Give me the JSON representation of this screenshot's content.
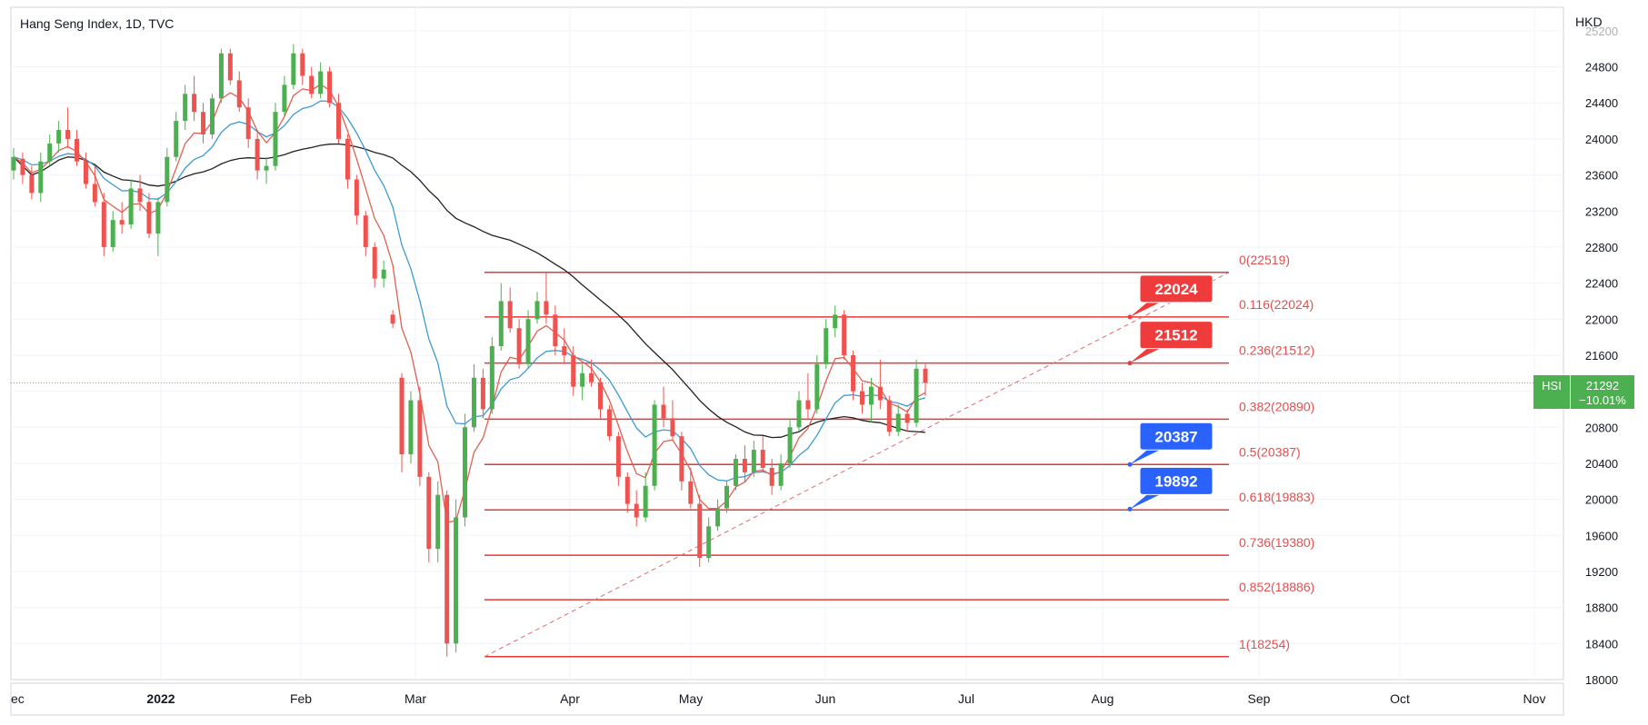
{
  "header": {
    "title": "Hang Seng Index, 1D, TVC",
    "currency": "HKD"
  },
  "price_tag": {
    "symbol": "HSI",
    "price": "21292",
    "change": "−10.01%"
  },
  "colors": {
    "up": "#4caf50",
    "down": "#ef5350",
    "fib": "#e53935",
    "ma_fast": "#e06050",
    "ma_mid": "#3d9ad1",
    "ma_slow": "#222222",
    "label_red": "#ef3b3b",
    "label_blue": "#2962ff"
  },
  "chart_data": {
    "type": "candlestick",
    "ylim": [
      18000,
      25200
    ],
    "y_ticks": [
      "18000",
      "18400",
      "18800",
      "19200",
      "19600",
      "20000",
      "20400",
      "20800",
      "21200",
      "21600",
      "22000",
      "22400",
      "22800",
      "23200",
      "23600",
      "24000",
      "24400",
      "24800",
      "25200"
    ],
    "x_ticks": [
      "ec",
      "2022",
      "Feb",
      "Mar",
      "Apr",
      "May",
      "Jun",
      "Jul",
      "Aug",
      "Sep",
      "Oct",
      "Nov"
    ],
    "fib_levels": [
      {
        "ratio": 0,
        "price": 22519,
        "label": "0(22519)"
      },
      {
        "ratio": 0.116,
        "price": 22024,
        "label": "0.116(22024)"
      },
      {
        "ratio": 0.236,
        "price": 21512,
        "label": "0.236(21512)"
      },
      {
        "ratio": 0.382,
        "price": 20890,
        "label": "0.382(20890)"
      },
      {
        "ratio": 0.5,
        "price": 20387,
        "label": "0.5(20387)"
      },
      {
        "ratio": 0.618,
        "price": 19883,
        "label": "0.618(19883)"
      },
      {
        "ratio": 0.736,
        "price": 19380,
        "label": "0.736(19380)"
      },
      {
        "ratio": 0.852,
        "price": 18886,
        "label": "0.852(18886)"
      },
      {
        "ratio": 1,
        "price": 18254,
        "label": "1(18254)"
      }
    ],
    "callouts": [
      {
        "text": "22024",
        "price": 22024,
        "color": "red"
      },
      {
        "text": "21512",
        "price": 21512,
        "color": "red"
      },
      {
        "text": "20387",
        "price": 20387,
        "color": "blue"
      },
      {
        "text": "19892",
        "price": 19892,
        "color": "blue"
      }
    ],
    "last_price": 21292,
    "candles": [
      {
        "o": 23650,
        "h": 23900,
        "l": 23550,
        "c": 23800
      },
      {
        "o": 23780,
        "h": 23850,
        "l": 23500,
        "c": 23600
      },
      {
        "o": 23600,
        "h": 23700,
        "l": 23330,
        "c": 23400
      },
      {
        "o": 23400,
        "h": 23850,
        "l": 23300,
        "c": 23750
      },
      {
        "o": 23750,
        "h": 24050,
        "l": 23700,
        "c": 23950
      },
      {
        "o": 23950,
        "h": 24200,
        "l": 23850,
        "c": 24100
      },
      {
        "o": 24100,
        "h": 24350,
        "l": 23900,
        "c": 24000
      },
      {
        "o": 24000,
        "h": 24100,
        "l": 23700,
        "c": 23750
      },
      {
        "o": 23750,
        "h": 23850,
        "l": 23450,
        "c": 23500
      },
      {
        "o": 23500,
        "h": 23700,
        "l": 23250,
        "c": 23300
      },
      {
        "o": 23300,
        "h": 23400,
        "l": 22700,
        "c": 22800
      },
      {
        "o": 22800,
        "h": 23200,
        "l": 22750,
        "c": 23100
      },
      {
        "o": 23100,
        "h": 23300,
        "l": 22950,
        "c": 23050
      },
      {
        "o": 23050,
        "h": 23550,
        "l": 23000,
        "c": 23450
      },
      {
        "o": 23450,
        "h": 23600,
        "l": 23200,
        "c": 23300
      },
      {
        "o": 23300,
        "h": 23400,
        "l": 22900,
        "c": 22950
      },
      {
        "o": 22950,
        "h": 23350,
        "l": 22700,
        "c": 23300
      },
      {
        "o": 23300,
        "h": 23900,
        "l": 23250,
        "c": 23800
      },
      {
        "o": 23800,
        "h": 24300,
        "l": 23750,
        "c": 24200
      },
      {
        "o": 24200,
        "h": 24600,
        "l": 24100,
        "c": 24500
      },
      {
        "o": 24500,
        "h": 24700,
        "l": 24200,
        "c": 24300
      },
      {
        "o": 24300,
        "h": 24400,
        "l": 23950,
        "c": 24050
      },
      {
        "o": 24050,
        "h": 24500,
        "l": 24000,
        "c": 24450
      },
      {
        "o": 24450,
        "h": 25000,
        "l": 24400,
        "c": 24950
      },
      {
        "o": 24950,
        "h": 25000,
        "l": 24600,
        "c": 24650
      },
      {
        "o": 24650,
        "h": 24750,
        "l": 24300,
        "c": 24350
      },
      {
        "o": 24350,
        "h": 24450,
        "l": 23900,
        "c": 24000
      },
      {
        "o": 24000,
        "h": 24100,
        "l": 23550,
        "c": 23650
      },
      {
        "o": 23650,
        "h": 23800,
        "l": 23500,
        "c": 23700
      },
      {
        "o": 23700,
        "h": 24400,
        "l": 23650,
        "c": 24300
      },
      {
        "o": 24300,
        "h": 24700,
        "l": 24250,
        "c": 24600
      },
      {
        "o": 24600,
        "h": 25050,
        "l": 24550,
        "c": 24950
      },
      {
        "o": 24950,
        "h": 25000,
        "l": 24600,
        "c": 24700
      },
      {
        "o": 24700,
        "h": 24800,
        "l": 24450,
        "c": 24500
      },
      {
        "o": 24500,
        "h": 24850,
        "l": 24450,
        "c": 24750
      },
      {
        "o": 24750,
        "h": 24800,
        "l": 24350,
        "c": 24400
      },
      {
        "o": 24400,
        "h": 24500,
        "l": 23950,
        "c": 24000
      },
      {
        "o": 24000,
        "h": 24050,
        "l": 23450,
        "c": 23550
      },
      {
        "o": 23550,
        "h": 23600,
        "l": 23050,
        "c": 23150
      },
      {
        "o": 23150,
        "h": 23200,
        "l": 22700,
        "c": 22800
      },
      {
        "o": 22800,
        "h": 22850,
        "l": 22350,
        "c": 22450
      },
      {
        "o": 22450,
        "h": 22650,
        "l": 22350,
        "c": 22550
      },
      {
        "o": 22050,
        "h": 22100,
        "l": 21900,
        "c": 21950
      },
      {
        "o": 21350,
        "h": 21400,
        "l": 20300,
        "c": 20500
      },
      {
        "o": 20500,
        "h": 21200,
        "l": 20400,
        "c": 21100
      },
      {
        "o": 21100,
        "h": 21250,
        "l": 20150,
        "c": 20250
      },
      {
        "o": 20250,
        "h": 20300,
        "l": 19300,
        "c": 19450
      },
      {
        "o": 19450,
        "h": 20200,
        "l": 19300,
        "c": 20050
      },
      {
        "o": 20050,
        "h": 20100,
        "l": 18254,
        "c": 18400
      },
      {
        "o": 18400,
        "h": 20000,
        "l": 18300,
        "c": 19800
      },
      {
        "o": 19800,
        "h": 20950,
        "l": 19700,
        "c": 20800
      },
      {
        "o": 20800,
        "h": 21500,
        "l": 20750,
        "c": 21350
      },
      {
        "o": 21350,
        "h": 21450,
        "l": 20900,
        "c": 21000
      },
      {
        "o": 21000,
        "h": 21800,
        "l": 20950,
        "c": 21700
      },
      {
        "o": 21700,
        "h": 22400,
        "l": 21650,
        "c": 22200
      },
      {
        "o": 22200,
        "h": 22350,
        "l": 21850,
        "c": 21900
      },
      {
        "o": 21900,
        "h": 22000,
        "l": 21450,
        "c": 21500
      },
      {
        "o": 21500,
        "h": 22100,
        "l": 21450,
        "c": 22000
      },
      {
        "o": 22000,
        "h": 22300,
        "l": 21950,
        "c": 22200
      },
      {
        "o": 22200,
        "h": 22519,
        "l": 21950,
        "c": 22050
      },
      {
        "o": 22050,
        "h": 22150,
        "l": 21600,
        "c": 21700
      },
      {
        "o": 21700,
        "h": 21900,
        "l": 21500,
        "c": 21600
      },
      {
        "o": 21600,
        "h": 21700,
        "l": 21150,
        "c": 21250
      },
      {
        "o": 21250,
        "h": 21500,
        "l": 21100,
        "c": 21400
      },
      {
        "o": 21400,
        "h": 21550,
        "l": 21250,
        "c": 21300
      },
      {
        "o": 21300,
        "h": 21350,
        "l": 20900,
        "c": 21000
      },
      {
        "o": 21000,
        "h": 21050,
        "l": 20650,
        "c": 20700
      },
      {
        "o": 20700,
        "h": 20750,
        "l": 20150,
        "c": 20250
      },
      {
        "o": 20250,
        "h": 20300,
        "l": 19850,
        "c": 19950
      },
      {
        "o": 19950,
        "h": 20100,
        "l": 19700,
        "c": 19800
      },
      {
        "o": 19800,
        "h": 20300,
        "l": 19750,
        "c": 20150
      },
      {
        "o": 20150,
        "h": 21100,
        "l": 20100,
        "c": 21050
      },
      {
        "o": 21050,
        "h": 21250,
        "l": 20800,
        "c": 20900
      },
      {
        "o": 20900,
        "h": 21100,
        "l": 20650,
        "c": 20700
      },
      {
        "o": 20700,
        "h": 20750,
        "l": 20100,
        "c": 20200
      },
      {
        "o": 20200,
        "h": 20350,
        "l": 19900,
        "c": 19950
      },
      {
        "o": 19950,
        "h": 20050,
        "l": 19250,
        "c": 19350
      },
      {
        "o": 19350,
        "h": 19800,
        "l": 19300,
        "c": 19700
      },
      {
        "o": 19700,
        "h": 20000,
        "l": 19650,
        "c": 19900
      },
      {
        "o": 19900,
        "h": 20200,
        "l": 19850,
        "c": 20150
      },
      {
        "o": 20150,
        "h": 20500,
        "l": 20100,
        "c": 20450
      },
      {
        "o": 20450,
        "h": 20600,
        "l": 20200,
        "c": 20300
      },
      {
        "o": 20300,
        "h": 20650,
        "l": 20250,
        "c": 20550
      },
      {
        "o": 20550,
        "h": 20700,
        "l": 20300,
        "c": 20350
      },
      {
        "o": 20350,
        "h": 20450,
        "l": 20050,
        "c": 20150
      },
      {
        "o": 20150,
        "h": 20500,
        "l": 20100,
        "c": 20400
      },
      {
        "o": 20400,
        "h": 20900,
        "l": 20350,
        "c": 20800
      },
      {
        "o": 20800,
        "h": 21200,
        "l": 20750,
        "c": 21100
      },
      {
        "o": 21100,
        "h": 21400,
        "l": 20900,
        "c": 21000
      },
      {
        "o": 21000,
        "h": 21600,
        "l": 20950,
        "c": 21500
      },
      {
        "o": 21500,
        "h": 22000,
        "l": 21450,
        "c": 21900
      },
      {
        "o": 21900,
        "h": 22150,
        "l": 21800,
        "c": 22050
      },
      {
        "o": 22050,
        "h": 22100,
        "l": 21550,
        "c": 21600
      },
      {
        "o": 21600,
        "h": 21650,
        "l": 21100,
        "c": 21200
      },
      {
        "o": 21200,
        "h": 21300,
        "l": 20950,
        "c": 21050
      },
      {
        "o": 21050,
        "h": 21350,
        "l": 20850,
        "c": 21250
      },
      {
        "o": 21250,
        "h": 21550,
        "l": 21000,
        "c": 21100
      },
      {
        "o": 21100,
        "h": 21150,
        "l": 20700,
        "c": 20750
      },
      {
        "o": 20750,
        "h": 21050,
        "l": 20700,
        "c": 20950
      },
      {
        "o": 20950,
        "h": 21000,
        "l": 20750,
        "c": 20850
      },
      {
        "o": 20850,
        "h": 21550,
        "l": 20800,
        "c": 21450
      },
      {
        "o": 21450,
        "h": 21500,
        "l": 21150,
        "c": 21292
      }
    ]
  }
}
